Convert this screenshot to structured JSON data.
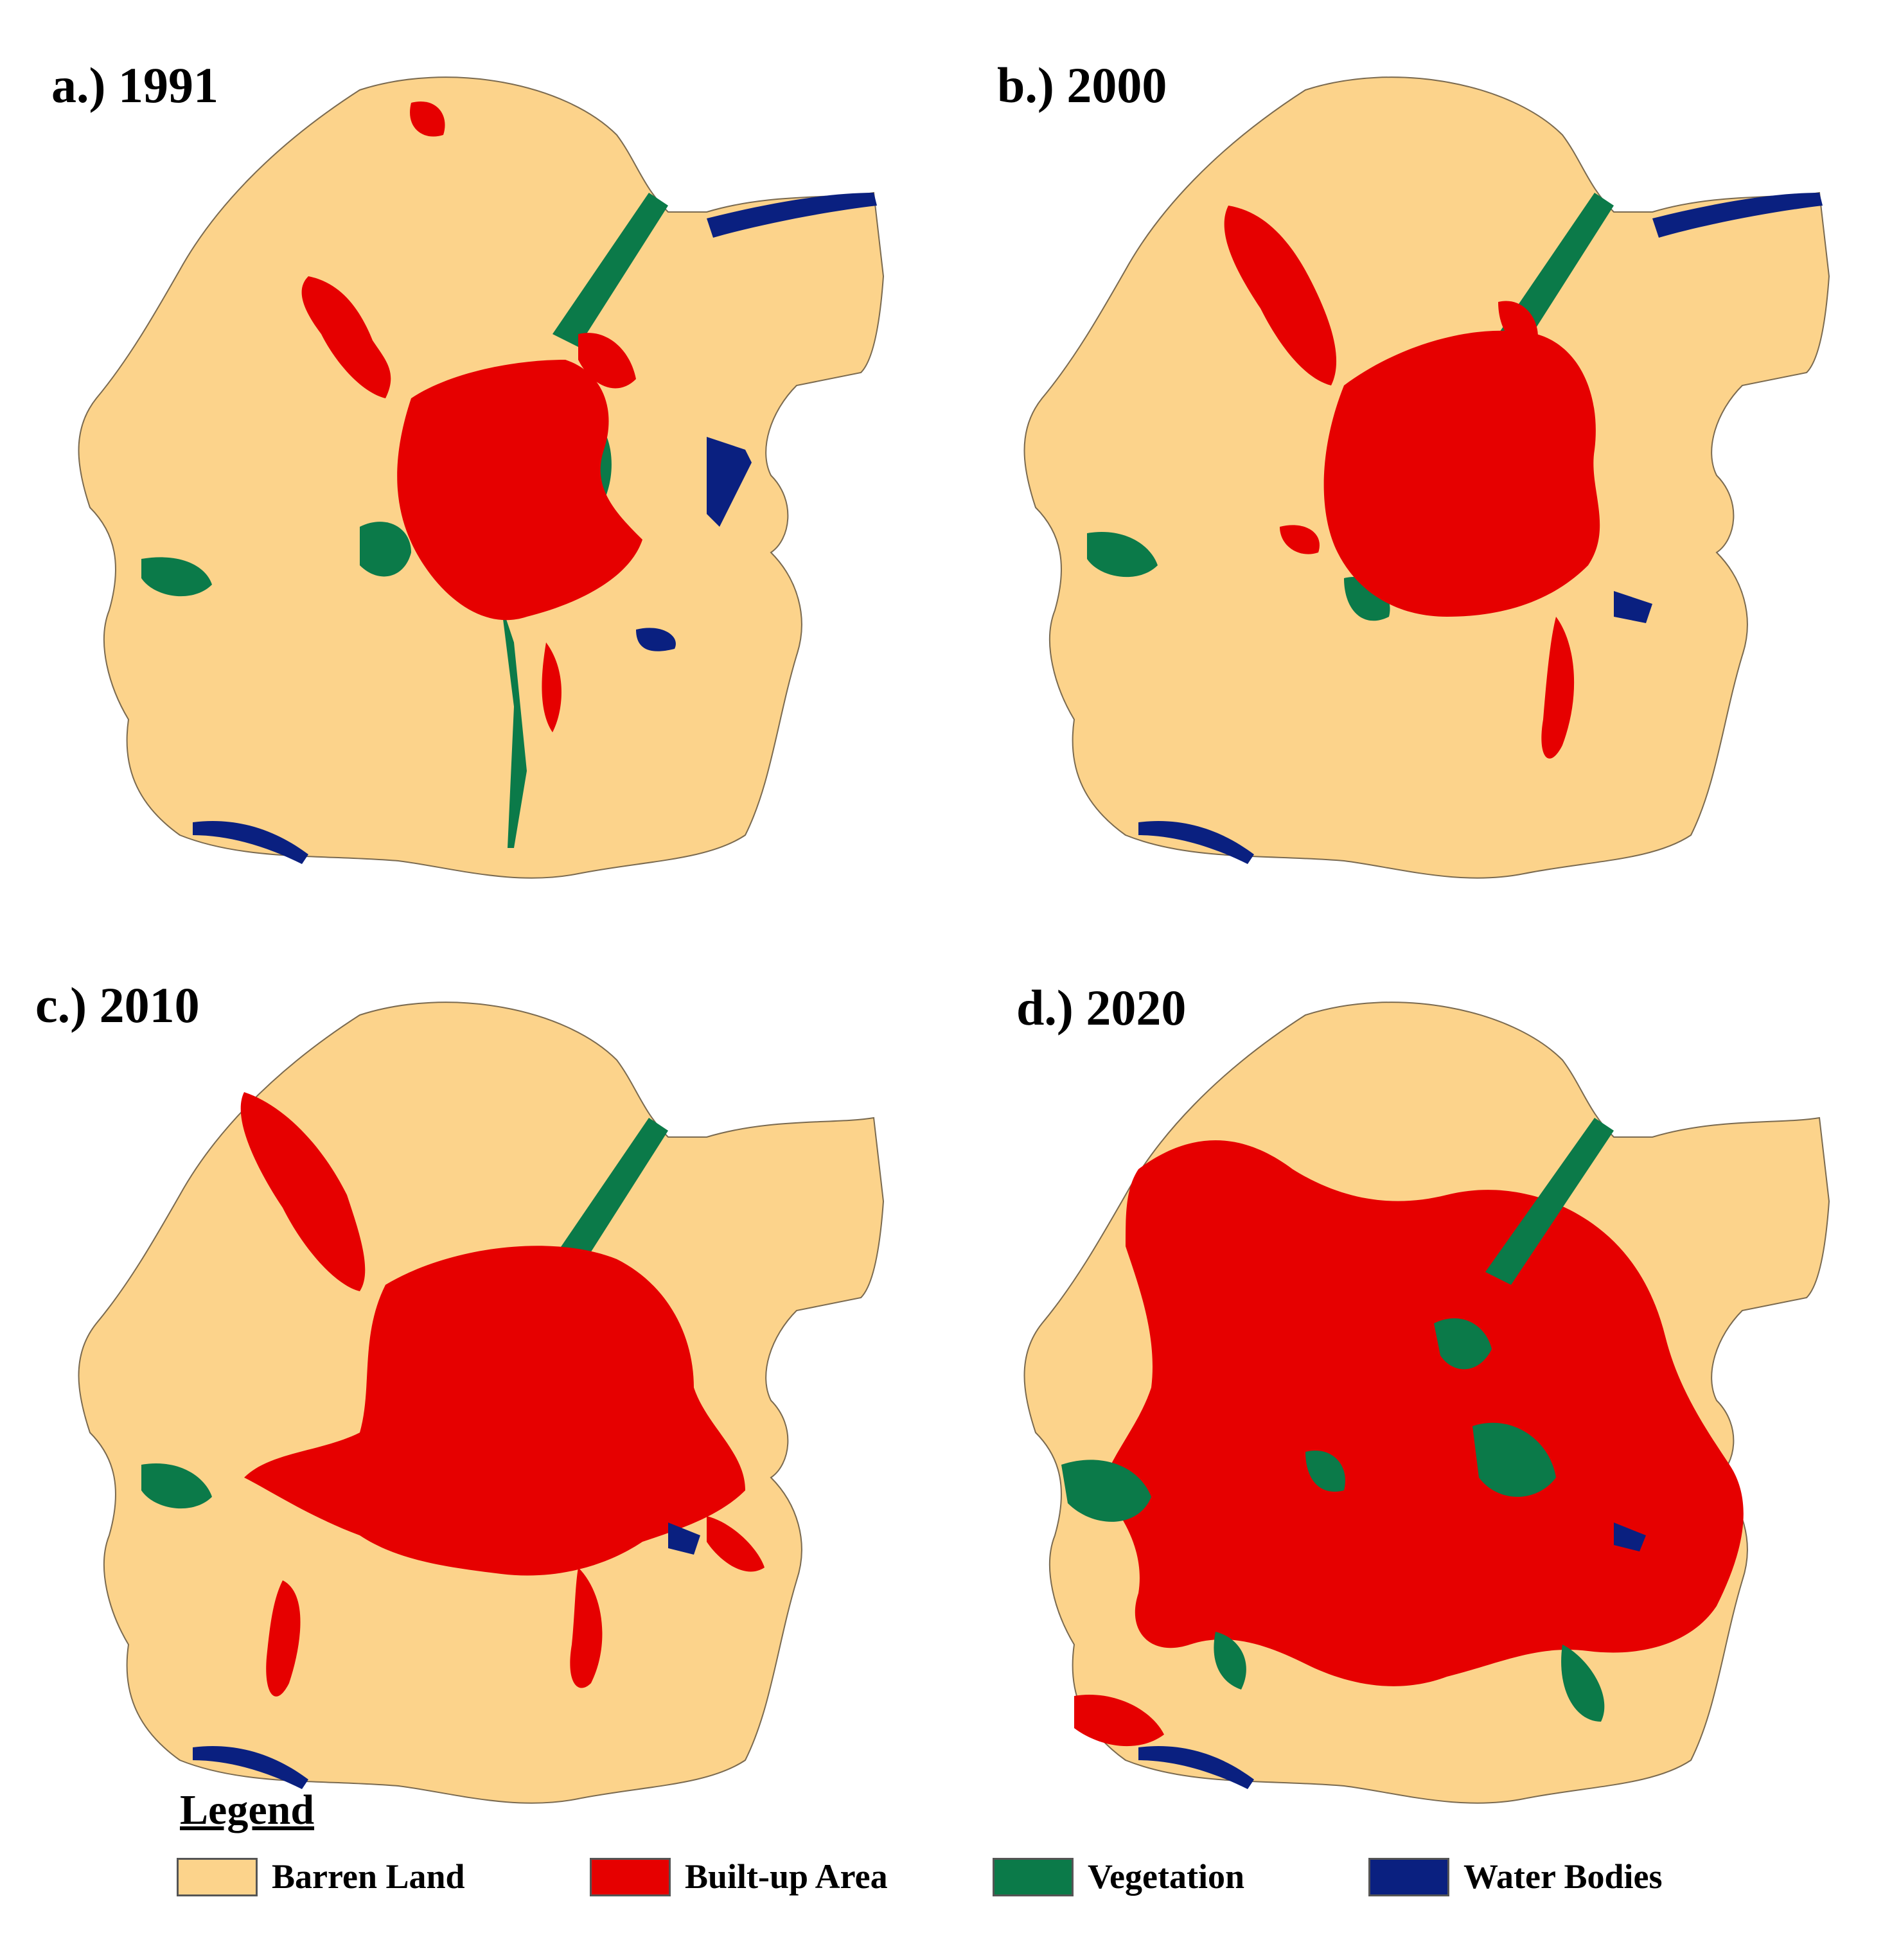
{
  "panels": [
    {
      "id": "a",
      "label": "a.) 1991",
      "year": 1991
    },
    {
      "id": "b",
      "label": "b.) 2000",
      "year": 2000
    },
    {
      "id": "c",
      "label": "c.) 2010",
      "year": 2010
    },
    {
      "id": "d",
      "label": "d.) 2020",
      "year": 2020
    }
  ],
  "legend": {
    "title": "Legend",
    "items": [
      {
        "label": "Barren Land",
        "color": "#FCD38B"
      },
      {
        "label": "Built-up Area",
        "color": "#E60000"
      },
      {
        "label": "Vegetation",
        "color": "#0B7A49"
      },
      {
        "label": "Water Bodies",
        "color": "#0A2080"
      }
    ]
  }
}
